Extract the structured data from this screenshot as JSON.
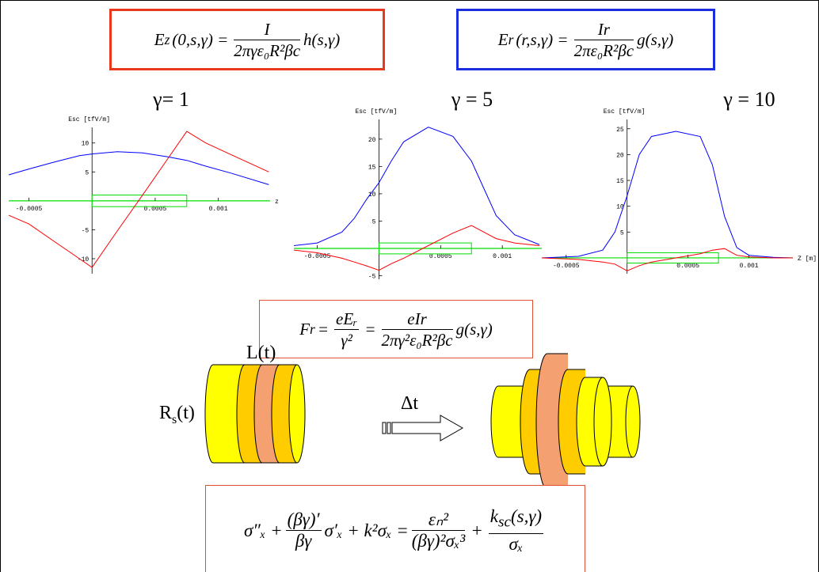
{
  "eq_top_left": {
    "lhs": "E",
    "sub": "z",
    "args": "(0,s,γ) =",
    "num": "I",
    "den": "2πγε₀R²βc",
    "tail": "h(s,γ)"
  },
  "eq_top_right": {
    "lhs": "E",
    "sub": "r",
    "args": "(r,s,γ) =",
    "num": "Ir",
    "den": "2πε₀R²βc",
    "tail": "g(s,γ)"
  },
  "eq_force": {
    "lhs": "F",
    "sub": "r",
    "eq1": "=",
    "num1": "eEᵣ",
    "den1": "γ²",
    "eq2": "=",
    "num2": "eIr",
    "den2": "2πγ²ε₀R²βc",
    "tail": "g(s,γ)"
  },
  "eq_envelope": {
    "t1": "σ″ₓ +",
    "num1": "(βγ)′",
    "den1": "βγ",
    "t2": "σ′ₓ + k²σₓ =",
    "num2": "εₙ²",
    "den2": "(βγ)²σₓ³",
    "t3": "+",
    "num3_k": "k",
    "num3_sub": "sc",
    "num3_rest": "(s,γ)",
    "den3": "σₓ"
  },
  "diagram": {
    "length_label": "L(t)",
    "radius_main": "R",
    "radius_sub": "s",
    "radius_rest": "(t)",
    "step_label": "Δt"
  },
  "plots": [
    {
      "type": "line",
      "title": "γ= 1",
      "ylabel": "Esc [tfV/m]",
      "xlabel": "z",
      "x": [
        -0.00066,
        -0.0005,
        -0.0003,
        -0.0001,
        0,
        0.0002,
        0.0004,
        0.0006,
        0.00075,
        0.0009,
        0.0011,
        0.0014
      ],
      "series": [
        {
          "color": "#0000ff",
          "values": [
            4.5,
            5.5,
            6.7,
            7.8,
            8.1,
            8.5,
            8.3,
            7.6,
            7,
            6,
            4.8,
            2.8
          ]
        },
        {
          "color": "#ff0000",
          "values": [
            -2.5,
            -4,
            -7,
            -10,
            -11.5,
            -5.2,
            1,
            7.3,
            12,
            10,
            8,
            5
          ]
        }
      ],
      "box": {
        "x": [
          0,
          0.00075
        ],
        "y": [
          -1,
          1
        ],
        "color": "#00dd00"
      },
      "xlim": [
        -0.00066,
        0.00141
      ],
      "ylim": [
        -12.6,
        12.7
      ],
      "xticks": [
        -0.0005,
        0.0005,
        0.001
      ],
      "yticks": [
        -10,
        -5,
        5,
        10
      ]
    },
    {
      "type": "line",
      "title": "γ = 5",
      "ylabel": "Esc [tfV/m]",
      "x": [
        -0.00069,
        -0.0005,
        -0.0003,
        -0.0002,
        -0.0001,
        0,
        0.0001,
        0.0002,
        0.0004,
        0.0006,
        0.00075,
        0.00085,
        0.00095,
        0.0011,
        0.0013
      ],
      "series": [
        {
          "color": "#0000ff",
          "values": [
            0.5,
            1,
            3,
            5.5,
            9,
            12,
            16,
            19.5,
            22.2,
            20.5,
            16,
            11,
            6,
            2.5,
            0.7
          ]
        },
        {
          "color": "#ff0000",
          "values": [
            -0.3,
            -0.8,
            -1.8,
            -2.5,
            -3.2,
            -4,
            -2.8,
            -1.8,
            0.5,
            2.8,
            4.2,
            3,
            1.8,
            1,
            0.5
          ]
        }
      ],
      "box": {
        "x": [
          0,
          0.00075
        ],
        "y": [
          -1,
          1
        ],
        "color": "#00dd00"
      },
      "xlim": [
        -0.00069,
        0.00132
      ],
      "ylim": [
        -5.65,
        23.6
      ],
      "xticks": [
        -0.0005,
        0.0005,
        0.001
      ],
      "yticks": [
        -5,
        5,
        10,
        15,
        20
      ]
    },
    {
      "type": "line",
      "title": "γ = 10",
      "ylabel": "Esc [tfV/m]",
      "xlabel": "Z [m]",
      "x": [
        -0.0007,
        -0.0004,
        -0.0002,
        -0.0001,
        0,
        0.0001,
        0.0002,
        0.0004,
        0.0006,
        0.0007,
        0.0008,
        0.0009,
        0.001,
        0.0012,
        0.00136
      ],
      "series": [
        {
          "color": "#0000ff",
          "values": [
            0,
            0.3,
            1.5,
            5,
            12,
            20,
            23.5,
            24.5,
            23.5,
            18,
            8,
            2,
            0.5,
            0.1,
            0
          ]
        },
        {
          "color": "#ff0000",
          "values": [
            0,
            -0.3,
            -0.8,
            -1.2,
            -2.5,
            -1.5,
            -0.8,
            0,
            0.8,
            1.5,
            1.8,
            0.5,
            0.2,
            0,
            0
          ]
        }
      ],
      "box": {
        "x": [
          0,
          0.00075
        ],
        "y": [
          -1,
          1
        ],
        "color": "#00dd00"
      },
      "xlim": [
        -0.0007,
        0.00136
      ],
      "ylim": [
        -3.07,
        26.8
      ],
      "xticks": [
        -0.0005,
        0.0005,
        0.001
      ],
      "yticks": [
        5,
        10,
        15,
        20,
        25
      ]
    }
  ]
}
